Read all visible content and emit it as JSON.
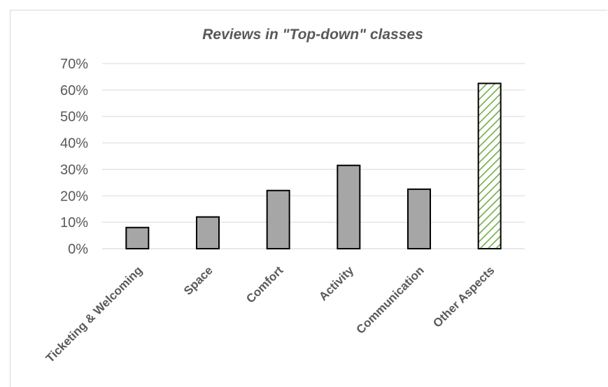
{
  "chart_data": {
    "type": "bar",
    "title": "Reviews in \"Top-down\" classes",
    "categories": [
      "Ticketing & Welcoming",
      "Space",
      "Comfort",
      "Activity",
      "Communication",
      "Other Aspects"
    ],
    "values": [
      8,
      12,
      22,
      31.5,
      22.5,
      62.5
    ],
    "ylim": [
      0,
      70
    ],
    "yticks": [
      "0%",
      "10%",
      "20%",
      "30%",
      "40%",
      "50%",
      "60%",
      "70%"
    ],
    "grid": true,
    "colors": {
      "bar_fill": "#a6a6a6",
      "bar_stroke": "#000000",
      "highlight_hatch": "#70ad47",
      "text": "#595959"
    },
    "highlight_index": 5
  }
}
